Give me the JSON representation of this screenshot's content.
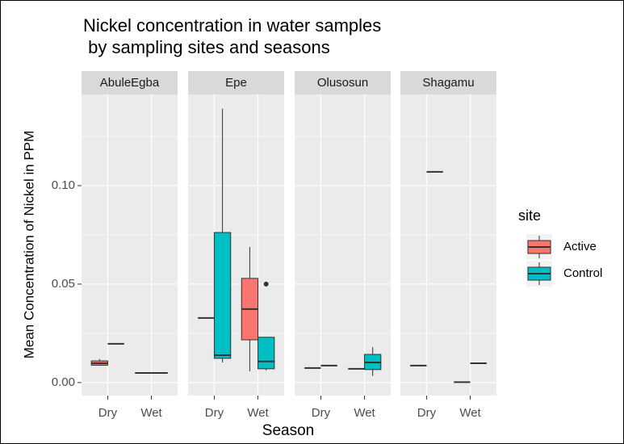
{
  "chart_data": {
    "type": "box",
    "title": [
      "Nickel concentration in water samples",
      " by sampling sites and seasons"
    ],
    "x_label": "Season",
    "y_label": "Mean Concentration of Nickel in PPM",
    "legend_title": "site",
    "legend_position": "right",
    "grid": true,
    "facets": [
      "AbuleEgba",
      "Epe",
      "Olusosun",
      "Shagamu"
    ],
    "categories": [
      "Dry",
      "Wet"
    ],
    "ylim": [
      -0.0066,
      0.1463
    ],
    "yticks": [
      {
        "value": 0,
        "label": "0.00"
      },
      {
        "value": 0.05,
        "label": "0.05"
      },
      {
        "value": 0.1,
        "label": "0.10"
      }
    ],
    "minor_yticks": [
      0.025,
      0.075,
      0.125
    ],
    "series": [
      {
        "name": "Active",
        "color": "#F8766D",
        "values": [
          [
            {
              "min": 0.0085,
              "q1": 0.0088,
              "median": 0.0098,
              "q3": 0.011,
              "max": 0.012,
              "outliers": []
            },
            {
              "min": 0.0049,
              "q1": 0.0049,
              "median": 0.0049,
              "q3": 0.0049,
              "max": 0.0049,
              "outliers": []
            }
          ],
          [
            {
              "min": 0.0328,
              "q1": 0.0328,
              "median": 0.0328,
              "q3": 0.0328,
              "max": 0.0328,
              "outliers": []
            },
            {
              "min": 0.0057,
              "q1": 0.0217,
              "median": 0.0373,
              "q3": 0.0529,
              "max": 0.0689,
              "outliers": []
            }
          ],
          [
            {
              "min": 0.0074,
              "q1": 0.0074,
              "median": 0.0074,
              "q3": 0.0074,
              "max": 0.0074,
              "outliers": []
            },
            {
              "min": 0.007,
              "q1": 0.007,
              "median": 0.007,
              "q3": 0.007,
              "max": 0.007,
              "outliers": []
            }
          ],
          [
            {
              "min": 0.0086,
              "q1": 0.0086,
              "median": 0.0086,
              "q3": 0.0086,
              "max": 0.0086,
              "outliers": []
            },
            {
              "min": 0.0002,
              "q1": 0.0002,
              "median": 0.0002,
              "q3": 0.0002,
              "max": 0.0002,
              "outliers": []
            }
          ]
        ]
      },
      {
        "name": "Control",
        "color": "#00BFC4",
        "values": [
          [
            {
              "min": 0.0197,
              "q1": 0.0197,
              "median": 0.0197,
              "q3": 0.0197,
              "max": 0.0197,
              "outliers": []
            },
            {
              "min": 0.0049,
              "q1": 0.0049,
              "median": 0.0049,
              "q3": 0.0049,
              "max": 0.0049,
              "outliers": []
            }
          ],
          [
            {
              "min": 0.0102,
              "q1": 0.0123,
              "median": 0.0139,
              "q3": 0.0762,
              "max": 0.139,
              "outliers": []
            },
            {
              "min": 0.0061,
              "q1": 0.007,
              "median": 0.0107,
              "q3": 0.023,
              "max": 0.023,
              "outliers": [
                0.05
              ]
            }
          ],
          [
            {
              "min": 0.0086,
              "q1": 0.0086,
              "median": 0.0086,
              "q3": 0.0086,
              "max": 0.0086,
              "outliers": []
            },
            {
              "min": 0.0033,
              "q1": 0.0066,
              "median": 0.0102,
              "q3": 0.0143,
              "max": 0.018,
              "outliers": []
            }
          ],
          [
            {
              "min": 0.107,
              "q1": 0.107,
              "median": 0.107,
              "q3": 0.107,
              "max": 0.107,
              "outliers": []
            },
            {
              "min": 0.0098,
              "q1": 0.0098,
              "median": 0.0098,
              "q3": 0.0098,
              "max": 0.0098,
              "outliers": []
            }
          ]
        ]
      }
    ]
  }
}
